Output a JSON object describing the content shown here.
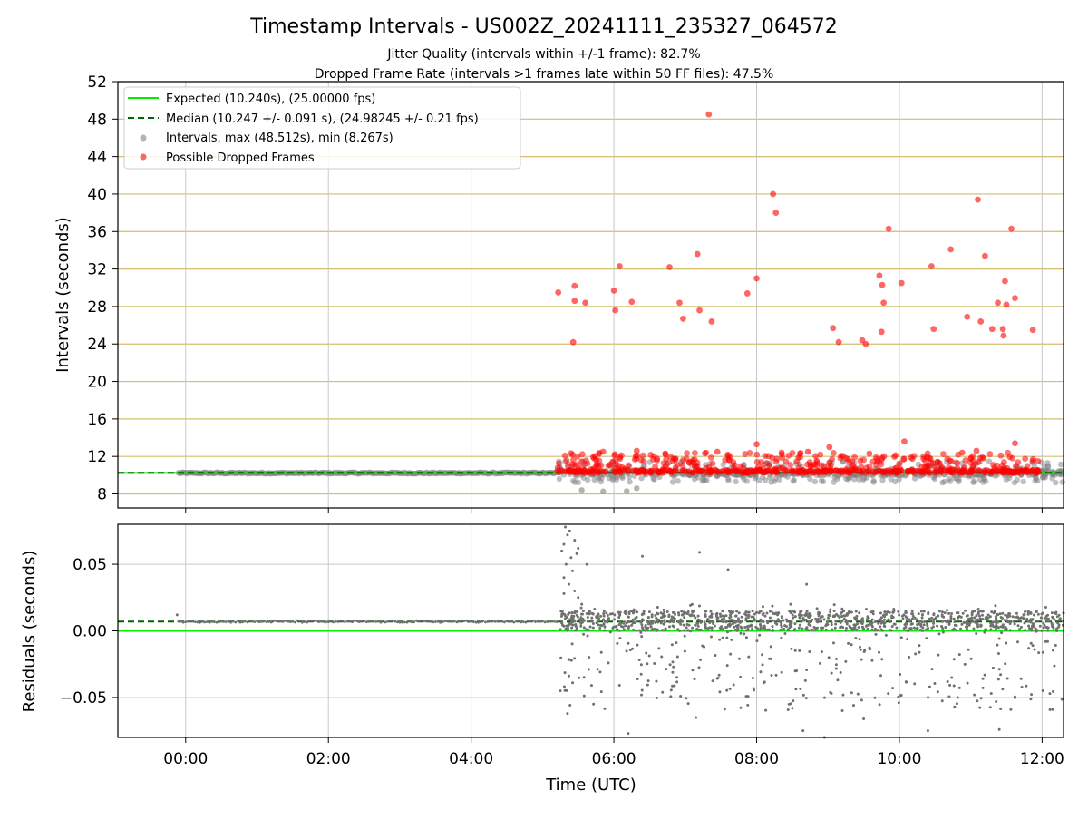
{
  "chart_data": [
    {
      "type": "scatter",
      "title": "Timestamp Intervals - US002Z_20241111_235327_064572",
      "subtitle_lines": [
        "Jitter Quality (intervals within +/-1 frame): 82.7%",
        "Dropped Frame Rate (intervals >1 frames late within 50 FF files): 47.5%"
      ],
      "ylabel": "Intervals (seconds)",
      "ylim": [
        6.5,
        52
      ],
      "yticks": [
        8,
        12,
        16,
        20,
        24,
        28,
        32,
        36,
        40,
        44,
        48,
        52
      ],
      "xlim_hours": [
        -0.95,
        12.3
      ],
      "grid": true,
      "legend_position": "upper-left",
      "legend": [
        {
          "label": "Expected (10.240s), (25.00000 fps)",
          "style": "line",
          "color": "#00ee00"
        },
        {
          "label": "Median (10.247 +/- 0.091 s), (24.98245 +/- 0.21 fps)",
          "style": "dashed",
          "color": "#006400"
        },
        {
          "label": "Intervals, max (48.512s), min (8.267s)",
          "style": "marker",
          "color": "#808080"
        },
        {
          "label": "Possible Dropped Frames",
          "style": "marker",
          "color": "#ff0000"
        }
      ],
      "expected": 10.24,
      "median": 10.247,
      "dropped_frames": [
        {
          "x": 5.22,
          "y": 29.5
        },
        {
          "x": 5.45,
          "y": 30.2
        },
        {
          "x": 5.45,
          "y": 28.6
        },
        {
          "x": 5.43,
          "y": 24.2
        },
        {
          "x": 5.6,
          "y": 28.4
        },
        {
          "x": 6.0,
          "y": 29.7
        },
        {
          "x": 6.02,
          "y": 27.6
        },
        {
          "x": 6.08,
          "y": 32.3
        },
        {
          "x": 6.25,
          "y": 28.5
        },
        {
          "x": 6.78,
          "y": 32.2
        },
        {
          "x": 6.92,
          "y": 28.4
        },
        {
          "x": 6.97,
          "y": 26.7
        },
        {
          "x": 7.17,
          "y": 33.6
        },
        {
          "x": 7.2,
          "y": 27.6
        },
        {
          "x": 7.33,
          "y": 48.5
        },
        {
          "x": 7.37,
          "y": 26.4
        },
        {
          "x": 7.87,
          "y": 29.4
        },
        {
          "x": 8.0,
          "y": 31.0
        },
        {
          "x": 8.23,
          "y": 40.0
        },
        {
          "x": 8.27,
          "y": 38.0
        },
        {
          "x": 9.07,
          "y": 25.7
        },
        {
          "x": 9.15,
          "y": 24.2
        },
        {
          "x": 9.48,
          "y": 24.4
        },
        {
          "x": 9.53,
          "y": 24.0
        },
        {
          "x": 9.72,
          "y": 31.3
        },
        {
          "x": 9.76,
          "y": 30.3
        },
        {
          "x": 9.78,
          "y": 28.4
        },
        {
          "x": 9.75,
          "y": 25.3
        },
        {
          "x": 9.85,
          "y": 36.3
        },
        {
          "x": 10.03,
          "y": 30.5
        },
        {
          "x": 10.45,
          "y": 32.3
        },
        {
          "x": 10.48,
          "y": 25.6
        },
        {
          "x": 10.72,
          "y": 34.1
        },
        {
          "x": 10.95,
          "y": 26.9
        },
        {
          "x": 11.1,
          "y": 39.4
        },
        {
          "x": 11.14,
          "y": 26.4
        },
        {
          "x": 11.2,
          "y": 33.4
        },
        {
          "x": 11.3,
          "y": 25.6
        },
        {
          "x": 11.38,
          "y": 28.4
        },
        {
          "x": 11.45,
          "y": 25.6
        },
        {
          "x": 11.46,
          "y": 24.9
        },
        {
          "x": 11.48,
          "y": 30.7
        },
        {
          "x": 11.5,
          "y": 28.2
        },
        {
          "x": 11.57,
          "y": 36.3
        },
        {
          "x": 11.62,
          "y": 28.9
        },
        {
          "x": 11.87,
          "y": 25.5
        },
        {
          "x": 8.0,
          "y": 13.3
        },
        {
          "x": 10.07,
          "y": 13.6
        },
        {
          "x": 11.62,
          "y": 13.4
        },
        {
          "x": 9.02,
          "y": 13.0
        },
        {
          "x": 5.85,
          "y": 12.5
        },
        {
          "x": 6.32,
          "y": 12.6
        },
        {
          "x": 7.45,
          "y": 12.5
        },
        {
          "x": 8.72,
          "y": 12.5
        },
        {
          "x": 10.88,
          "y": 12.4
        },
        {
          "x": 5.42,
          "y": 12.2
        },
        {
          "x": 6.72,
          "y": 12.3
        },
        {
          "x": 8.35,
          "y": 12.4
        },
        {
          "x": 9.58,
          "y": 12.3
        },
        {
          "x": 11.08,
          "y": 12.6
        }
      ],
      "dropped_band": {
        "x_range": [
          5.2,
          11.95
        ],
        "y_range": [
          10.25,
          12.4
        ]
      },
      "intervals_band": [
        {
          "x_range": [
            -0.1,
            5.2
          ],
          "y_range": [
            10.15,
            10.3
          ]
        },
        {
          "x_range": [
            5.2,
            12.3
          ],
          "y_range": [
            9.0,
            11.5
          ]
        }
      ],
      "low_outliers": [
        {
          "x": 5.85,
          "y": 8.27
        },
        {
          "x": 5.55,
          "y": 8.4
        },
        {
          "x": 6.18,
          "y": 8.3
        },
        {
          "x": 6.32,
          "y": 8.6
        }
      ]
    },
    {
      "type": "scatter",
      "ylabel": "Residuals (seconds)",
      "xlabel": "Time (UTC)",
      "ylim": [
        -0.08,
        0.08
      ],
      "yticks": [
        0.05,
        0.0,
        -0.05
      ],
      "ytick_labels": [
        "0.05",
        "0.00",
        "−0.05"
      ],
      "xticks_hours": [
        0,
        2,
        4,
        6,
        8,
        10,
        12
      ],
      "xtick_labels": [
        "00:00",
        "02:00",
        "04:00",
        "06:00",
        "08:00",
        "10:00",
        "12:00"
      ],
      "expected_residual": 0.0,
      "median_residual": 0.007,
      "points_color": "#707070",
      "early_segment": {
        "x_range": [
          -0.1,
          5.2
        ],
        "y": 0.007
      },
      "spike_points": [
        {
          "x": 5.32,
          "y": 0.078
        },
        {
          "x": 5.35,
          "y": 0.072
        },
        {
          "x": 5.38,
          "y": 0.075
        },
        {
          "x": 5.3,
          "y": 0.065
        },
        {
          "x": 5.27,
          "y": 0.06
        },
        {
          "x": 5.4,
          "y": 0.055
        },
        {
          "x": 5.45,
          "y": 0.068
        },
        {
          "x": 5.5,
          "y": 0.062
        },
        {
          "x": 5.33,
          "y": 0.05
        },
        {
          "x": 5.42,
          "y": 0.045
        },
        {
          "x": 5.3,
          "y": 0.04
        },
        {
          "x": 5.37,
          "y": 0.035
        },
        {
          "x": 5.45,
          "y": 0.03
        },
        {
          "x": 5.5,
          "y": 0.025
        },
        {
          "x": 5.55,
          "y": 0.02
        },
        {
          "x": 5.3,
          "y": 0.028
        },
        {
          "x": 5.62,
          "y": 0.05
        },
        {
          "x": 5.48,
          "y": 0.058
        },
        {
          "x": 5.35,
          "y": -0.062
        },
        {
          "x": 5.25,
          "y": -0.045
        },
        {
          "x": 6.4,
          "y": 0.056
        },
        {
          "x": 7.2,
          "y": 0.059
        },
        {
          "x": 7.15,
          "y": -0.065
        },
        {
          "x": 8.7,
          "y": 0.035
        },
        {
          "x": 8.65,
          "y": -0.075
        },
        {
          "x": 8.95,
          "y": -0.08
        },
        {
          "x": 10.4,
          "y": -0.075
        },
        {
          "x": 11.4,
          "y": -0.074
        },
        {
          "x": 7.6,
          "y": 0.046
        },
        {
          "x": 6.2,
          "y": -0.077
        },
        {
          "x": 9.5,
          "y": -0.066
        }
      ],
      "residual_band": {
        "x_range": [
          5.2,
          12.3
        ],
        "y_core": [
          0.0,
          0.015
        ],
        "y_scatter": [
          -0.06,
          0.02
        ]
      }
    }
  ]
}
